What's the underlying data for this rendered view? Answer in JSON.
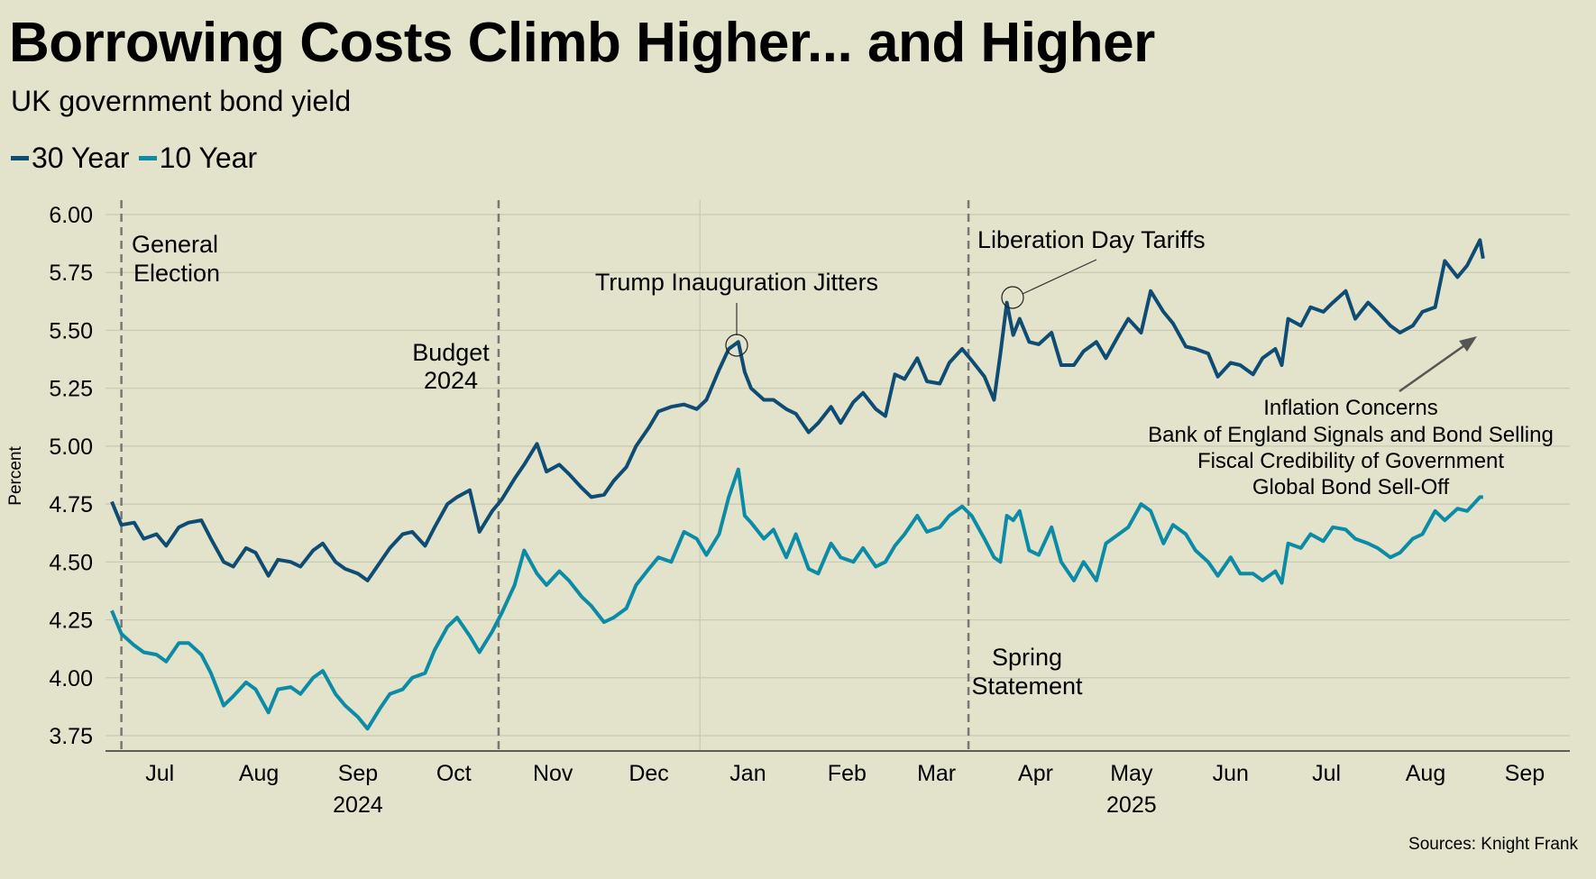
{
  "title": "Borrowing Costs Climb Higher... and Higher",
  "subtitle": "UK government bond yield",
  "sources": "Sources: Knight Frank",
  "colors": {
    "background": "#e3e2cb",
    "series_30y": "#0f4c73",
    "series_10y": "#0b8ba6",
    "grid": "#c9c8b2"
  },
  "chart_data": {
    "type": "line",
    "title": "Borrowing Costs Climb Higher... and Higher",
    "subtitle": "UK government bond yield",
    "ylabel": "Percent",
    "xlabel": "",
    "ylim": [
      3.68,
      6.0
    ],
    "yticks": [
      "3.75",
      "4.00",
      "4.25",
      "4.50",
      "4.75",
      "5.00",
      "5.25",
      "5.50",
      "5.75",
      "6.00"
    ],
    "grid": true,
    "legend": "top-left",
    "xtick_labels": [
      {
        "label": "Jul",
        "date": "2024-07-16"
      },
      {
        "label": "Aug",
        "date": "2024-08-16"
      },
      {
        "label": "Sep",
        "date": "2024-09-16"
      },
      {
        "label": "Oct",
        "date": "2024-10-16"
      },
      {
        "label": "Nov",
        "date": "2024-11-16"
      },
      {
        "label": "Dec",
        "date": "2024-12-16"
      },
      {
        "label": "Jan",
        "date": "2025-01-16"
      },
      {
        "label": "Feb",
        "date": "2025-02-16"
      },
      {
        "label": "Mar",
        "date": "2025-03-16"
      },
      {
        "label": "Apr",
        "date": "2025-04-16"
      },
      {
        "label": "May",
        "date": "2025-05-16"
      },
      {
        "label": "Jun",
        "date": "2025-06-16"
      },
      {
        "label": "Jul",
        "date": "2025-07-16"
      },
      {
        "label": "Aug",
        "date": "2025-08-16"
      },
      {
        "label": "Sep",
        "date": "2025-09-16"
      }
    ],
    "year_labels": [
      {
        "label": "2024",
        "date": "2024-09-16"
      },
      {
        "label": "2025",
        "date": "2025-05-16"
      }
    ],
    "events": [
      {
        "date": "2024-07-04",
        "label_lines": [
          "General",
          "Election"
        ]
      },
      {
        "date": "2024-10-30",
        "label_lines": [
          "Budget",
          "2024"
        ]
      },
      {
        "date": "2025-03-26",
        "label_lines": [
          "Spring",
          "Statement"
        ]
      }
    ],
    "annotations": {
      "trump": "Trump Inauguration Jitters",
      "liberation": "Liberation Day Tariffs",
      "drivers": [
        "Inflation Concerns",
        "Bank of England Signals and Bond Selling",
        "Fiscal Credibility of Government",
        "Global Bond Sell-Off"
      ]
    },
    "series": [
      {
        "name": "30 Year",
        "color": "#0f4c73"
      },
      {
        "name": "10 Year",
        "color": "#0b8ba6"
      }
    ],
    "points_columns": [
      "date",
      "30 Year",
      "10 Year"
    ],
    "points": [
      [
        "2024-07-01",
        4.76,
        4.29
      ],
      [
        "2024-07-04",
        4.66,
        4.19
      ],
      [
        "2024-07-08",
        4.67,
        4.14
      ],
      [
        "2024-07-11",
        4.6,
        4.11
      ],
      [
        "2024-07-15",
        4.62,
        4.1
      ],
      [
        "2024-07-18",
        4.57,
        4.07
      ],
      [
        "2024-07-22",
        4.65,
        4.15
      ],
      [
        "2024-07-25",
        4.67,
        4.15
      ],
      [
        "2024-07-29",
        4.68,
        4.1
      ],
      [
        "2024-08-01",
        4.6,
        4.02
      ],
      [
        "2024-08-05",
        4.5,
        3.88
      ],
      [
        "2024-08-08",
        4.48,
        3.92
      ],
      [
        "2024-08-12",
        4.56,
        3.98
      ],
      [
        "2024-08-15",
        4.54,
        3.95
      ],
      [
        "2024-08-19",
        4.44,
        3.85
      ],
      [
        "2024-08-22",
        4.51,
        3.95
      ],
      [
        "2024-08-26",
        4.5,
        3.96
      ],
      [
        "2024-08-29",
        4.48,
        3.93
      ],
      [
        "2024-09-02",
        4.55,
        4.0
      ],
      [
        "2024-09-05",
        4.58,
        4.03
      ],
      [
        "2024-09-09",
        4.5,
        3.93
      ],
      [
        "2024-09-12",
        4.47,
        3.88
      ],
      [
        "2024-09-16",
        4.45,
        3.83
      ],
      [
        "2024-09-19",
        4.42,
        3.78
      ],
      [
        "2024-09-23",
        4.5,
        3.87
      ],
      [
        "2024-09-26",
        4.56,
        3.93
      ],
      [
        "2024-09-30",
        4.62,
        3.95
      ],
      [
        "2024-10-03",
        4.63,
        4.0
      ],
      [
        "2024-10-07",
        4.57,
        4.02
      ],
      [
        "2024-10-10",
        4.65,
        4.12
      ],
      [
        "2024-10-14",
        4.75,
        4.22
      ],
      [
        "2024-10-17",
        4.78,
        4.26
      ],
      [
        "2024-10-21",
        4.81,
        4.18
      ],
      [
        "2024-10-24",
        4.63,
        4.11
      ],
      [
        "2024-10-28",
        4.72,
        4.2
      ],
      [
        "2024-10-31",
        4.77,
        4.28
      ],
      [
        "2024-11-04",
        4.86,
        4.4
      ],
      [
        "2024-11-07",
        4.92,
        4.55
      ],
      [
        "2024-11-11",
        5.01,
        4.45
      ],
      [
        "2024-11-14",
        4.89,
        4.4
      ],
      [
        "2024-11-18",
        4.92,
        4.46
      ],
      [
        "2024-11-21",
        4.88,
        4.42
      ],
      [
        "2024-11-25",
        4.82,
        4.35
      ],
      [
        "2024-11-28",
        4.78,
        4.31
      ],
      [
        "2024-12-02",
        4.79,
        4.24
      ],
      [
        "2024-12-05",
        4.85,
        4.26
      ],
      [
        "2024-12-09",
        4.91,
        4.3
      ],
      [
        "2024-12-12",
        5.0,
        4.4
      ],
      [
        "2024-12-16",
        5.08,
        4.47
      ],
      [
        "2024-12-19",
        5.15,
        4.52
      ],
      [
        "2024-12-23",
        5.17,
        4.5
      ],
      [
        "2024-12-27",
        5.18,
        4.63
      ],
      [
        "2024-12-31",
        5.16,
        4.6
      ],
      [
        "2025-01-03",
        5.2,
        4.53
      ],
      [
        "2025-01-07",
        5.33,
        4.62
      ],
      [
        "2025-01-10",
        5.42,
        4.78
      ],
      [
        "2025-01-13",
        5.45,
        4.9
      ],
      [
        "2025-01-15",
        5.32,
        4.7
      ],
      [
        "2025-01-17",
        5.25,
        4.67
      ],
      [
        "2025-01-21",
        5.2,
        4.6
      ],
      [
        "2025-01-24",
        5.2,
        4.64
      ],
      [
        "2025-01-28",
        5.16,
        4.52
      ],
      [
        "2025-01-31",
        5.14,
        4.62
      ],
      [
        "2025-02-04",
        5.06,
        4.47
      ],
      [
        "2025-02-07",
        5.1,
        4.45
      ],
      [
        "2025-02-11",
        5.17,
        4.58
      ],
      [
        "2025-02-14",
        5.1,
        4.52
      ],
      [
        "2025-02-18",
        5.19,
        4.5
      ],
      [
        "2025-02-21",
        5.23,
        4.56
      ],
      [
        "2025-02-25",
        5.16,
        4.48
      ],
      [
        "2025-02-28",
        5.13,
        4.5
      ],
      [
        "2025-03-03",
        5.31,
        4.57
      ],
      [
        "2025-03-06",
        5.29,
        4.62
      ],
      [
        "2025-03-10",
        5.38,
        4.7
      ],
      [
        "2025-03-13",
        5.28,
        4.63
      ],
      [
        "2025-03-17",
        5.27,
        4.65
      ],
      [
        "2025-03-20",
        5.36,
        4.7
      ],
      [
        "2025-03-24",
        5.42,
        4.74
      ],
      [
        "2025-03-27",
        5.37,
        4.7
      ],
      [
        "2025-03-31",
        5.3,
        4.6
      ],
      [
        "2025-04-03",
        5.2,
        4.52
      ],
      [
        "2025-04-05",
        5.4,
        4.5
      ],
      [
        "2025-04-07",
        5.62,
        4.7
      ],
      [
        "2025-04-09",
        5.48,
        4.68
      ],
      [
        "2025-04-11",
        5.55,
        4.72
      ],
      [
        "2025-04-14",
        5.45,
        4.55
      ],
      [
        "2025-04-17",
        5.44,
        4.53
      ],
      [
        "2025-04-21",
        5.49,
        4.65
      ],
      [
        "2025-04-24",
        5.35,
        4.5
      ],
      [
        "2025-04-28",
        5.35,
        4.42
      ],
      [
        "2025-05-01",
        5.41,
        4.5
      ],
      [
        "2025-05-05",
        5.45,
        4.42
      ],
      [
        "2025-05-08",
        5.38,
        4.58
      ],
      [
        "2025-05-12",
        5.48,
        4.62
      ],
      [
        "2025-05-15",
        5.55,
        4.65
      ],
      [
        "2025-05-19",
        5.49,
        4.75
      ],
      [
        "2025-05-22",
        5.67,
        4.72
      ],
      [
        "2025-05-26",
        5.58,
        4.58
      ],
      [
        "2025-05-29",
        5.53,
        4.66
      ],
      [
        "2025-06-02",
        5.43,
        4.62
      ],
      [
        "2025-06-05",
        5.42,
        4.55
      ],
      [
        "2025-06-09",
        5.4,
        4.5
      ],
      [
        "2025-06-12",
        5.3,
        4.44
      ],
      [
        "2025-06-16",
        5.36,
        4.52
      ],
      [
        "2025-06-19",
        5.35,
        4.45
      ],
      [
        "2025-06-23",
        5.31,
        4.45
      ],
      [
        "2025-06-26",
        5.38,
        4.42
      ],
      [
        "2025-06-30",
        5.42,
        4.46
      ],
      [
        "2025-07-02",
        5.35,
        4.41
      ],
      [
        "2025-07-04",
        5.55,
        4.58
      ],
      [
        "2025-07-08",
        5.52,
        4.56
      ],
      [
        "2025-07-11",
        5.6,
        4.62
      ],
      [
        "2025-07-15",
        5.58,
        4.59
      ],
      [
        "2025-07-18",
        5.62,
        4.65
      ],
      [
        "2025-07-22",
        5.67,
        4.64
      ],
      [
        "2025-07-25",
        5.55,
        4.6
      ],
      [
        "2025-07-29",
        5.62,
        4.58
      ],
      [
        "2025-08-01",
        5.58,
        4.56
      ],
      [
        "2025-08-05",
        5.52,
        4.52
      ],
      [
        "2025-08-08",
        5.49,
        4.54
      ],
      [
        "2025-08-12",
        5.52,
        4.6
      ],
      [
        "2025-08-15",
        5.58,
        4.62
      ],
      [
        "2025-08-19",
        5.6,
        4.72
      ],
      [
        "2025-08-22",
        5.8,
        4.68
      ],
      [
        "2025-08-26",
        5.73,
        4.73
      ],
      [
        "2025-08-29",
        5.78,
        4.72
      ],
      [
        "2025-09-02",
        5.89,
        4.78
      ],
      [
        "2025-09-03",
        5.81,
        4.78
      ]
    ]
  }
}
